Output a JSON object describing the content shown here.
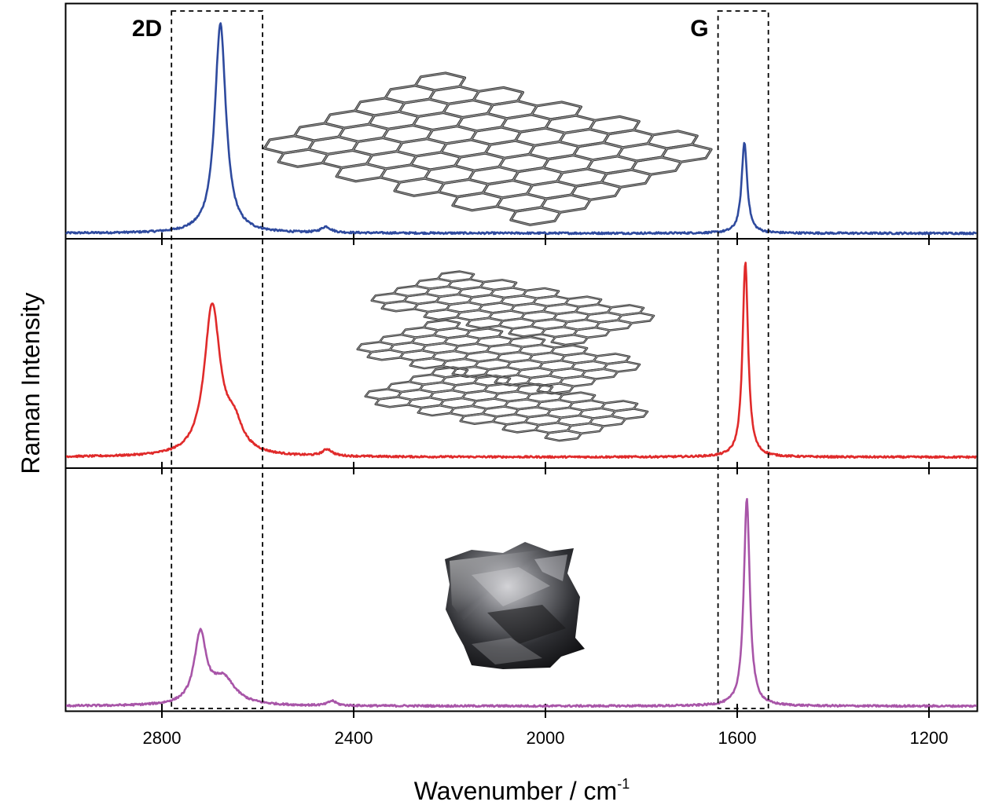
{
  "chart_data": {
    "type": "line",
    "title": "",
    "xlabel": "Wavenumber / cm",
    "xlabel_superscript": "-1",
    "ylabel": "Raman Intensity",
    "xlim": [
      3000,
      1100
    ],
    "x_reversed": true,
    "x_ticks": [
      2800,
      2400,
      2000,
      1600,
      1200
    ],
    "x_tick_labels": [
      "2800",
      "2400",
      "2000",
      "1600",
      "1200"
    ],
    "grid": false,
    "legend": "none",
    "regions": [
      {
        "label": "2D",
        "x_range": [
          2780,
          2590
        ]
      },
      {
        "label": "G",
        "x_range": [
          1640,
          1535
        ]
      }
    ],
    "panels": [
      {
        "color": "#2e4a9e",
        "illustration": "single-layer-graphene-lattice",
        "peaks": [
          {
            "center": 2678,
            "height": 0.88,
            "width": 14,
            "shape": "lorentz"
          },
          {
            "center": 2458,
            "height": 0.025,
            "width": 12,
            "shape": "lorentz"
          },
          {
            "center": 1585,
            "height": 0.38,
            "width": 7,
            "shape": "lorentz"
          }
        ]
      },
      {
        "color": "#e02a2a",
        "illustration": "few-layer-graphene-stack",
        "peaks": [
          {
            "center": 2695,
            "height": 0.66,
            "width": 20,
            "shape": "lorentz"
          },
          {
            "center": 2650,
            "height": 0.12,
            "width": 22,
            "shape": "lorentz"
          },
          {
            "center": 2455,
            "height": 0.03,
            "width": 12,
            "shape": "lorentz"
          },
          {
            "center": 1583,
            "height": 0.86,
            "width": 7,
            "shape": "lorentz"
          }
        ]
      },
      {
        "color": "#a855a8",
        "illustration": "bulk-graphite-chunk",
        "peaks": [
          {
            "center": 2720,
            "height": 0.29,
            "width": 15,
            "shape": "lorentz"
          },
          {
            "center": 2672,
            "height": 0.11,
            "width": 30,
            "shape": "lorentz"
          },
          {
            "center": 2445,
            "height": 0.02,
            "width": 10,
            "shape": "lorentz"
          },
          {
            "center": 1580,
            "height": 0.87,
            "width": 7.5,
            "shape": "lorentz"
          }
        ]
      }
    ]
  }
}
